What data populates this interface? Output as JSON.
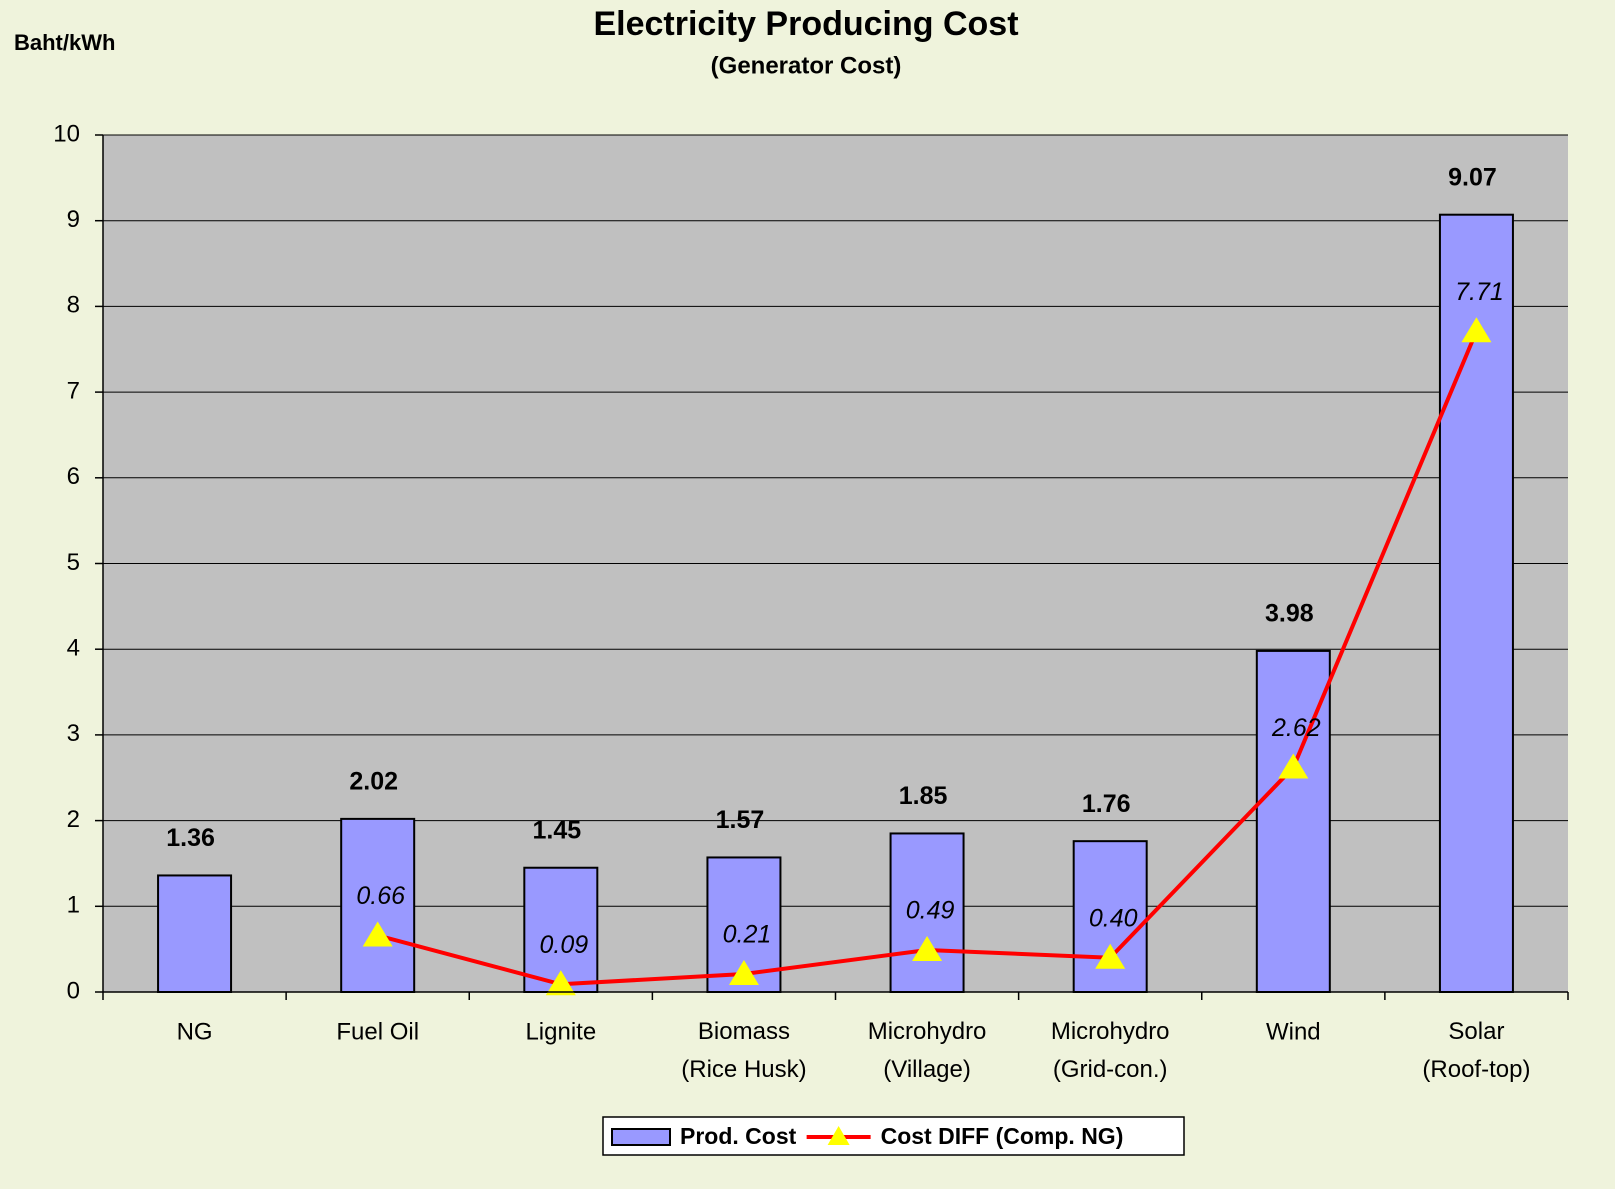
{
  "chart_data": {
    "type": "bar_line",
    "title": "Electricity Producing Cost",
    "subtitle": "(Generator Cost)",
    "y_axis_label": "Baht/kWh",
    "categories": [
      "NG",
      "Fuel Oil",
      "Lignite",
      "Biomass\n(Rice Husk)",
      "Microhydro\n(Village)",
      "Microhydro\n(Grid-con.)",
      "Wind",
      "Solar\n(Roof-top)"
    ],
    "series": [
      {
        "name": "Prod. Cost",
        "type": "bar",
        "color": "#9999ff",
        "values": [
          1.36,
          2.02,
          1.45,
          1.57,
          1.85,
          1.76,
          3.98,
          9.07
        ]
      },
      {
        "name": "Cost DIFF (Comp. NG)",
        "type": "line",
        "color": "#ff0000",
        "marker_color": "#ffff00",
        "values": [
          null,
          0.66,
          0.09,
          0.21,
          0.49,
          0.4,
          2.62,
          7.71
        ],
        "value_labels": [
          null,
          "0.66",
          "0.09",
          "0.21",
          "0.49",
          "0.40",
          "2.62",
          "7.71"
        ]
      }
    ],
    "ylim": [
      0,
      10
    ],
    "yticks": [
      0,
      1,
      2,
      3,
      4,
      5,
      6,
      7,
      8,
      9,
      10
    ],
    "grid": true
  }
}
